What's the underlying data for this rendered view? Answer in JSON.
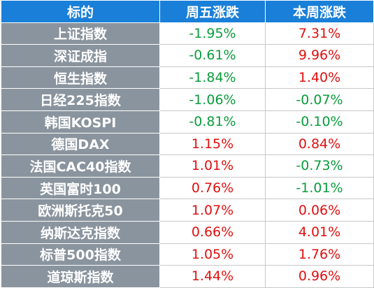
{
  "table": {
    "header": [
      "标的",
      "周五涨跌",
      "本周涨跌"
    ],
    "rows": [
      [
        "上证指数",
        "-1.95%",
        "7.31%"
      ],
      [
        "深证成指",
        "-0.61%",
        "9.96%"
      ],
      [
        "恒生指数",
        "-1.84%",
        "1.40%"
      ],
      [
        "日经225指数",
        "-1.06%",
        "-0.07%"
      ],
      [
        "韩国KOSPI",
        "-0.81%",
        "-0.10%"
      ],
      [
        "德国DAX",
        "1.15%",
        "0.84%"
      ],
      [
        "法国CAC40指数",
        "1.01%",
        "-0.73%"
      ],
      [
        "英国富时100",
        "0.76%",
        "-1.01%"
      ],
      [
        "欧洲斯托克50",
        "1.07%",
        "0.06%"
      ],
      [
        "纳斯达克指数",
        "0.66%",
        "4.01%"
      ],
      [
        "标普500指数",
        "1.05%",
        "1.76%"
      ],
      [
        "道琼斯指数",
        "1.44%",
        "0.96%"
      ]
    ]
  }
}
